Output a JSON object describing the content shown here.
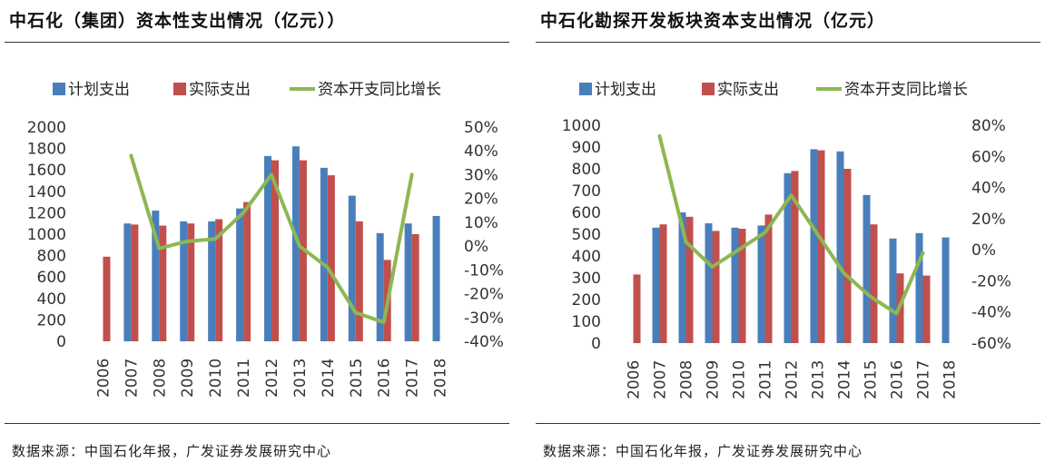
{
  "colors": {
    "planned": "#4a7ebb",
    "actual": "#c0504d",
    "growth": "#8db754"
  },
  "panels": [
    {
      "title": "中石化（集团）资本性支出情况（亿元））",
      "source": "数据来源：中国石化年报，广发证券发展研究中心"
    },
    {
      "title": "中石化勘探开发板块资本支出情况（亿元）",
      "source": "数据来源：中国石化年报，广发证券发展研究中心"
    }
  ],
  "chart_data": [
    {
      "type": "bar",
      "categories": [
        "2006",
        "2007",
        "2008",
        "2009",
        "2010",
        "2011",
        "2012",
        "2013",
        "2014",
        "2015",
        "2016",
        "2017",
        "2018"
      ],
      "legend": [
        "计划支出",
        "实际支出",
        "资本开支同比增长"
      ],
      "left_ticks": [
        "2000",
        "1800",
        "1600",
        "1400",
        "1200",
        "1000",
        "800",
        "600",
        "400",
        "200",
        "0"
      ],
      "right_ticks": [
        "50%",
        "40%",
        "30%",
        "20%",
        "10%",
        "0%",
        "-10%",
        "-20%",
        "-30%",
        "-40%"
      ],
      "ylim": [
        0,
        2000
      ],
      "y2lim": [
        -40,
        50
      ],
      "series": [
        {
          "name": "计划支出",
          "kind": "bar",
          "values": [
            null,
            1100,
            1220,
            1120,
            1120,
            1240,
            1730,
            1820,
            1620,
            1360,
            1010,
            1100,
            1170
          ]
        },
        {
          "name": "实际支出",
          "kind": "bar",
          "values": [
            790,
            1090,
            1080,
            1100,
            1140,
            1300,
            1690,
            1690,
            1550,
            1120,
            760,
            1000,
            null
          ]
        },
        {
          "name": "资本开支同比增长",
          "kind": "line",
          "axis": "right",
          "values": [
            null,
            38,
            -1,
            2,
            3,
            14,
            30,
            0,
            -9,
            -28,
            -32,
            30,
            null
          ]
        }
      ]
    },
    {
      "type": "bar",
      "categories": [
        "2006",
        "2007",
        "2008",
        "2009",
        "2010",
        "2011",
        "2012",
        "2013",
        "2014",
        "2015",
        "2016",
        "2017",
        "2018"
      ],
      "legend": [
        "计划支出",
        "实际支出",
        "资本开支同比增长"
      ],
      "left_ticks": [
        "1000",
        "900",
        "800",
        "700",
        "600",
        "500",
        "400",
        "300",
        "200",
        "100",
        "0"
      ],
      "right_ticks": [
        "80%",
        "60%",
        "40%",
        "20%",
        "0%",
        "-20%",
        "-40%",
        "-60%"
      ],
      "ylim": [
        0,
        1000
      ],
      "y2lim": [
        -60,
        80
      ],
      "series": [
        {
          "name": "计划支出",
          "kind": "bar",
          "values": [
            null,
            530,
            600,
            550,
            530,
            540,
            780,
            890,
            880,
            680,
            480,
            505,
            485
          ]
        },
        {
          "name": "实际支出",
          "kind": "bar",
          "values": [
            315,
            545,
            580,
            515,
            525,
            590,
            790,
            885,
            800,
            545,
            320,
            310,
            null
          ]
        },
        {
          "name": "资本开支同比增长",
          "kind": "line",
          "axis": "right",
          "values": [
            null,
            73,
            5,
            -11,
            0,
            11,
            35,
            10,
            -15,
            -30,
            -41,
            -2,
            null
          ]
        }
      ]
    }
  ]
}
